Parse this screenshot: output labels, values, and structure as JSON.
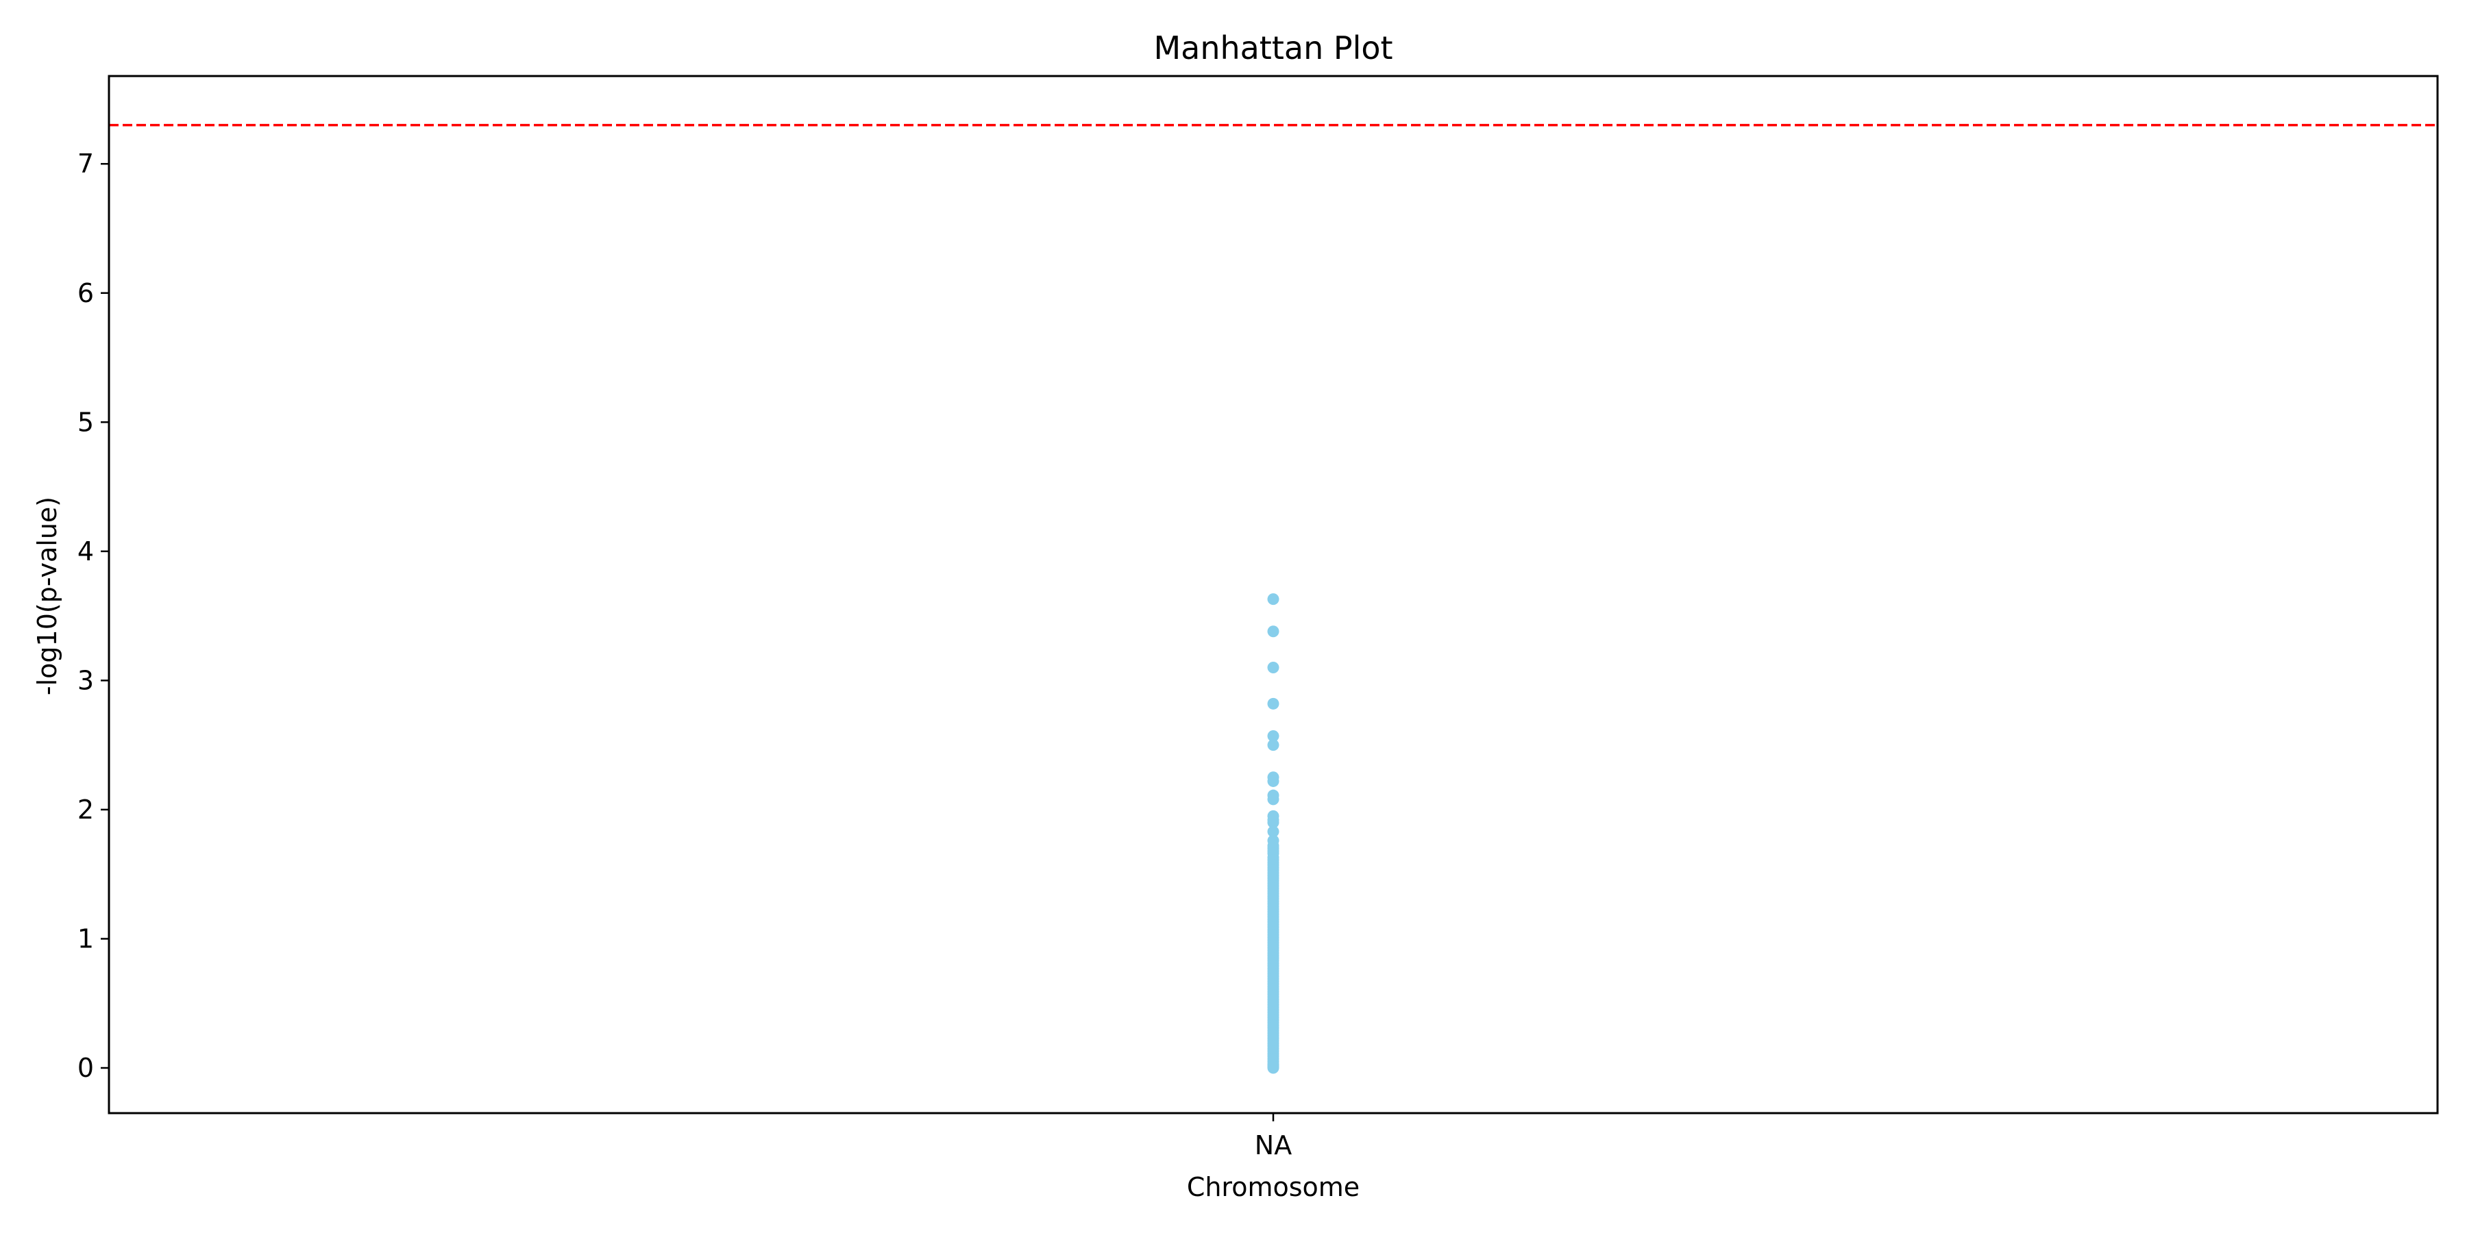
{
  "chart_data": {
    "type": "scatter",
    "title": "Manhattan Plot",
    "xlabel": "Chromosome",
    "ylabel": "-log10(p-value)",
    "x_categories": [
      "NA"
    ],
    "ylim": [
      -0.35,
      7.68
    ],
    "yticks": [
      0,
      1,
      2,
      3,
      4,
      5,
      6,
      7
    ],
    "grid": false,
    "legend": "none",
    "point_color": "#87CEEB",
    "threshold": {
      "value": 7.3,
      "color": "#FF0000",
      "style": "dashed"
    },
    "series": [
      {
        "x": "NA",
        "values": [
          3.63,
          3.38,
          3.1,
          2.82,
          2.57,
          2.5,
          2.25,
          2.22,
          2.11,
          2.08,
          1.95,
          1.92,
          1.9,
          1.83,
          1.76,
          1.72,
          1.7,
          1.68,
          1.66,
          1.63,
          1.61,
          1.59,
          1.57,
          1.55,
          1.53,
          1.51,
          1.49,
          1.47,
          1.45,
          1.43,
          1.41,
          1.39,
          1.37,
          1.35,
          1.33,
          1.31,
          1.29,
          1.27,
          1.25,
          1.23,
          1.21,
          1.19,
          1.17,
          1.15,
          1.13,
          1.11,
          1.09,
          1.07,
          1.05,
          1.03,
          1.01,
          0.99,
          0.97,
          0.95,
          0.93,
          0.91,
          0.89,
          0.87,
          0.85,
          0.83,
          0.81,
          0.79,
          0.77,
          0.75,
          0.73,
          0.71,
          0.69,
          0.67,
          0.65,
          0.63,
          0.61,
          0.59,
          0.57,
          0.55,
          0.53,
          0.51,
          0.49,
          0.47,
          0.45,
          0.43,
          0.41,
          0.39,
          0.37,
          0.35,
          0.33,
          0.31,
          0.29,
          0.27,
          0.25,
          0.23,
          0.21,
          0.19,
          0.17,
          0.15,
          0.13,
          0.11,
          0.09,
          0.07,
          0.05,
          0.03,
          0.02,
          0.01,
          0.0
        ]
      }
    ]
  }
}
